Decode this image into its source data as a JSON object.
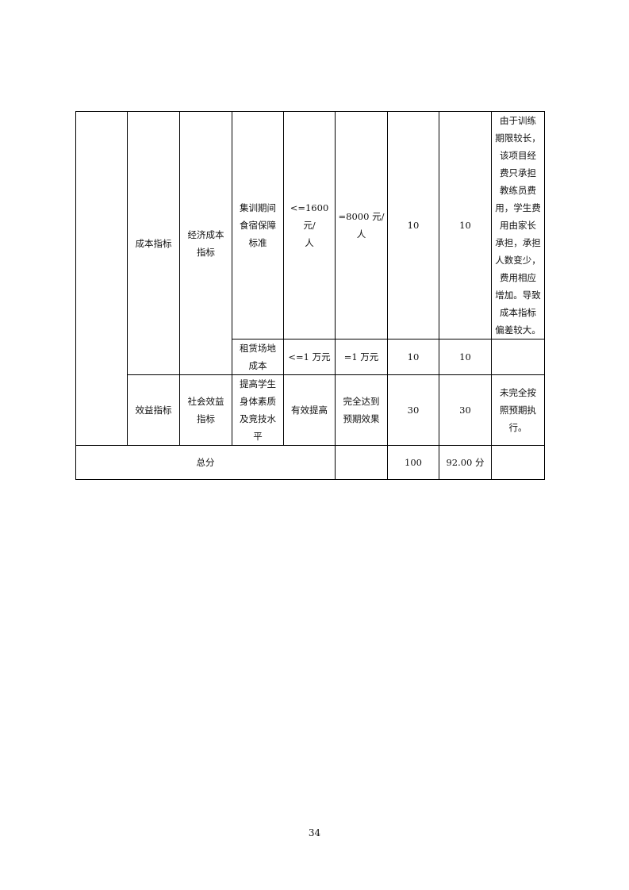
{
  "rows": [
    {
      "c1": "成本指标",
      "c2": "经济成本\n指标",
      "c3": "集训期间\n食宿保障\n标准",
      "c4": "<=1600 元/\n人",
      "c5": "=8000 元/\n人",
      "c6": "10",
      "c7": "10",
      "c8": "由于训练\n期限较长，\n该项目经\n费只承担\n教练员费\n用，学生费\n用由家长\n承担，承担\n人数变少，\n费用相应\n增加。导致\n成本指标\n偏差较大。"
    },
    {
      "c3": "租赁场地\n成本",
      "c4": "<=1 万元",
      "c5": "=1 万元",
      "c6": "10",
      "c7": "10",
      "c8": ""
    },
    {
      "c1": "效益指标",
      "c2": "社会效益\n指标",
      "c3": "提高学生\n身体素质\n及竞技水\n平",
      "c4": "有效提高",
      "c5": "完全达到\n预期效果",
      "c6": "30",
      "c7": "30",
      "c8": "未完全按\n照预期执\n行。"
    }
  ],
  "total": {
    "label": "总分",
    "c5": "",
    "c6": "100",
    "c7": "92.00 分",
    "c8": ""
  },
  "page_number": "34"
}
